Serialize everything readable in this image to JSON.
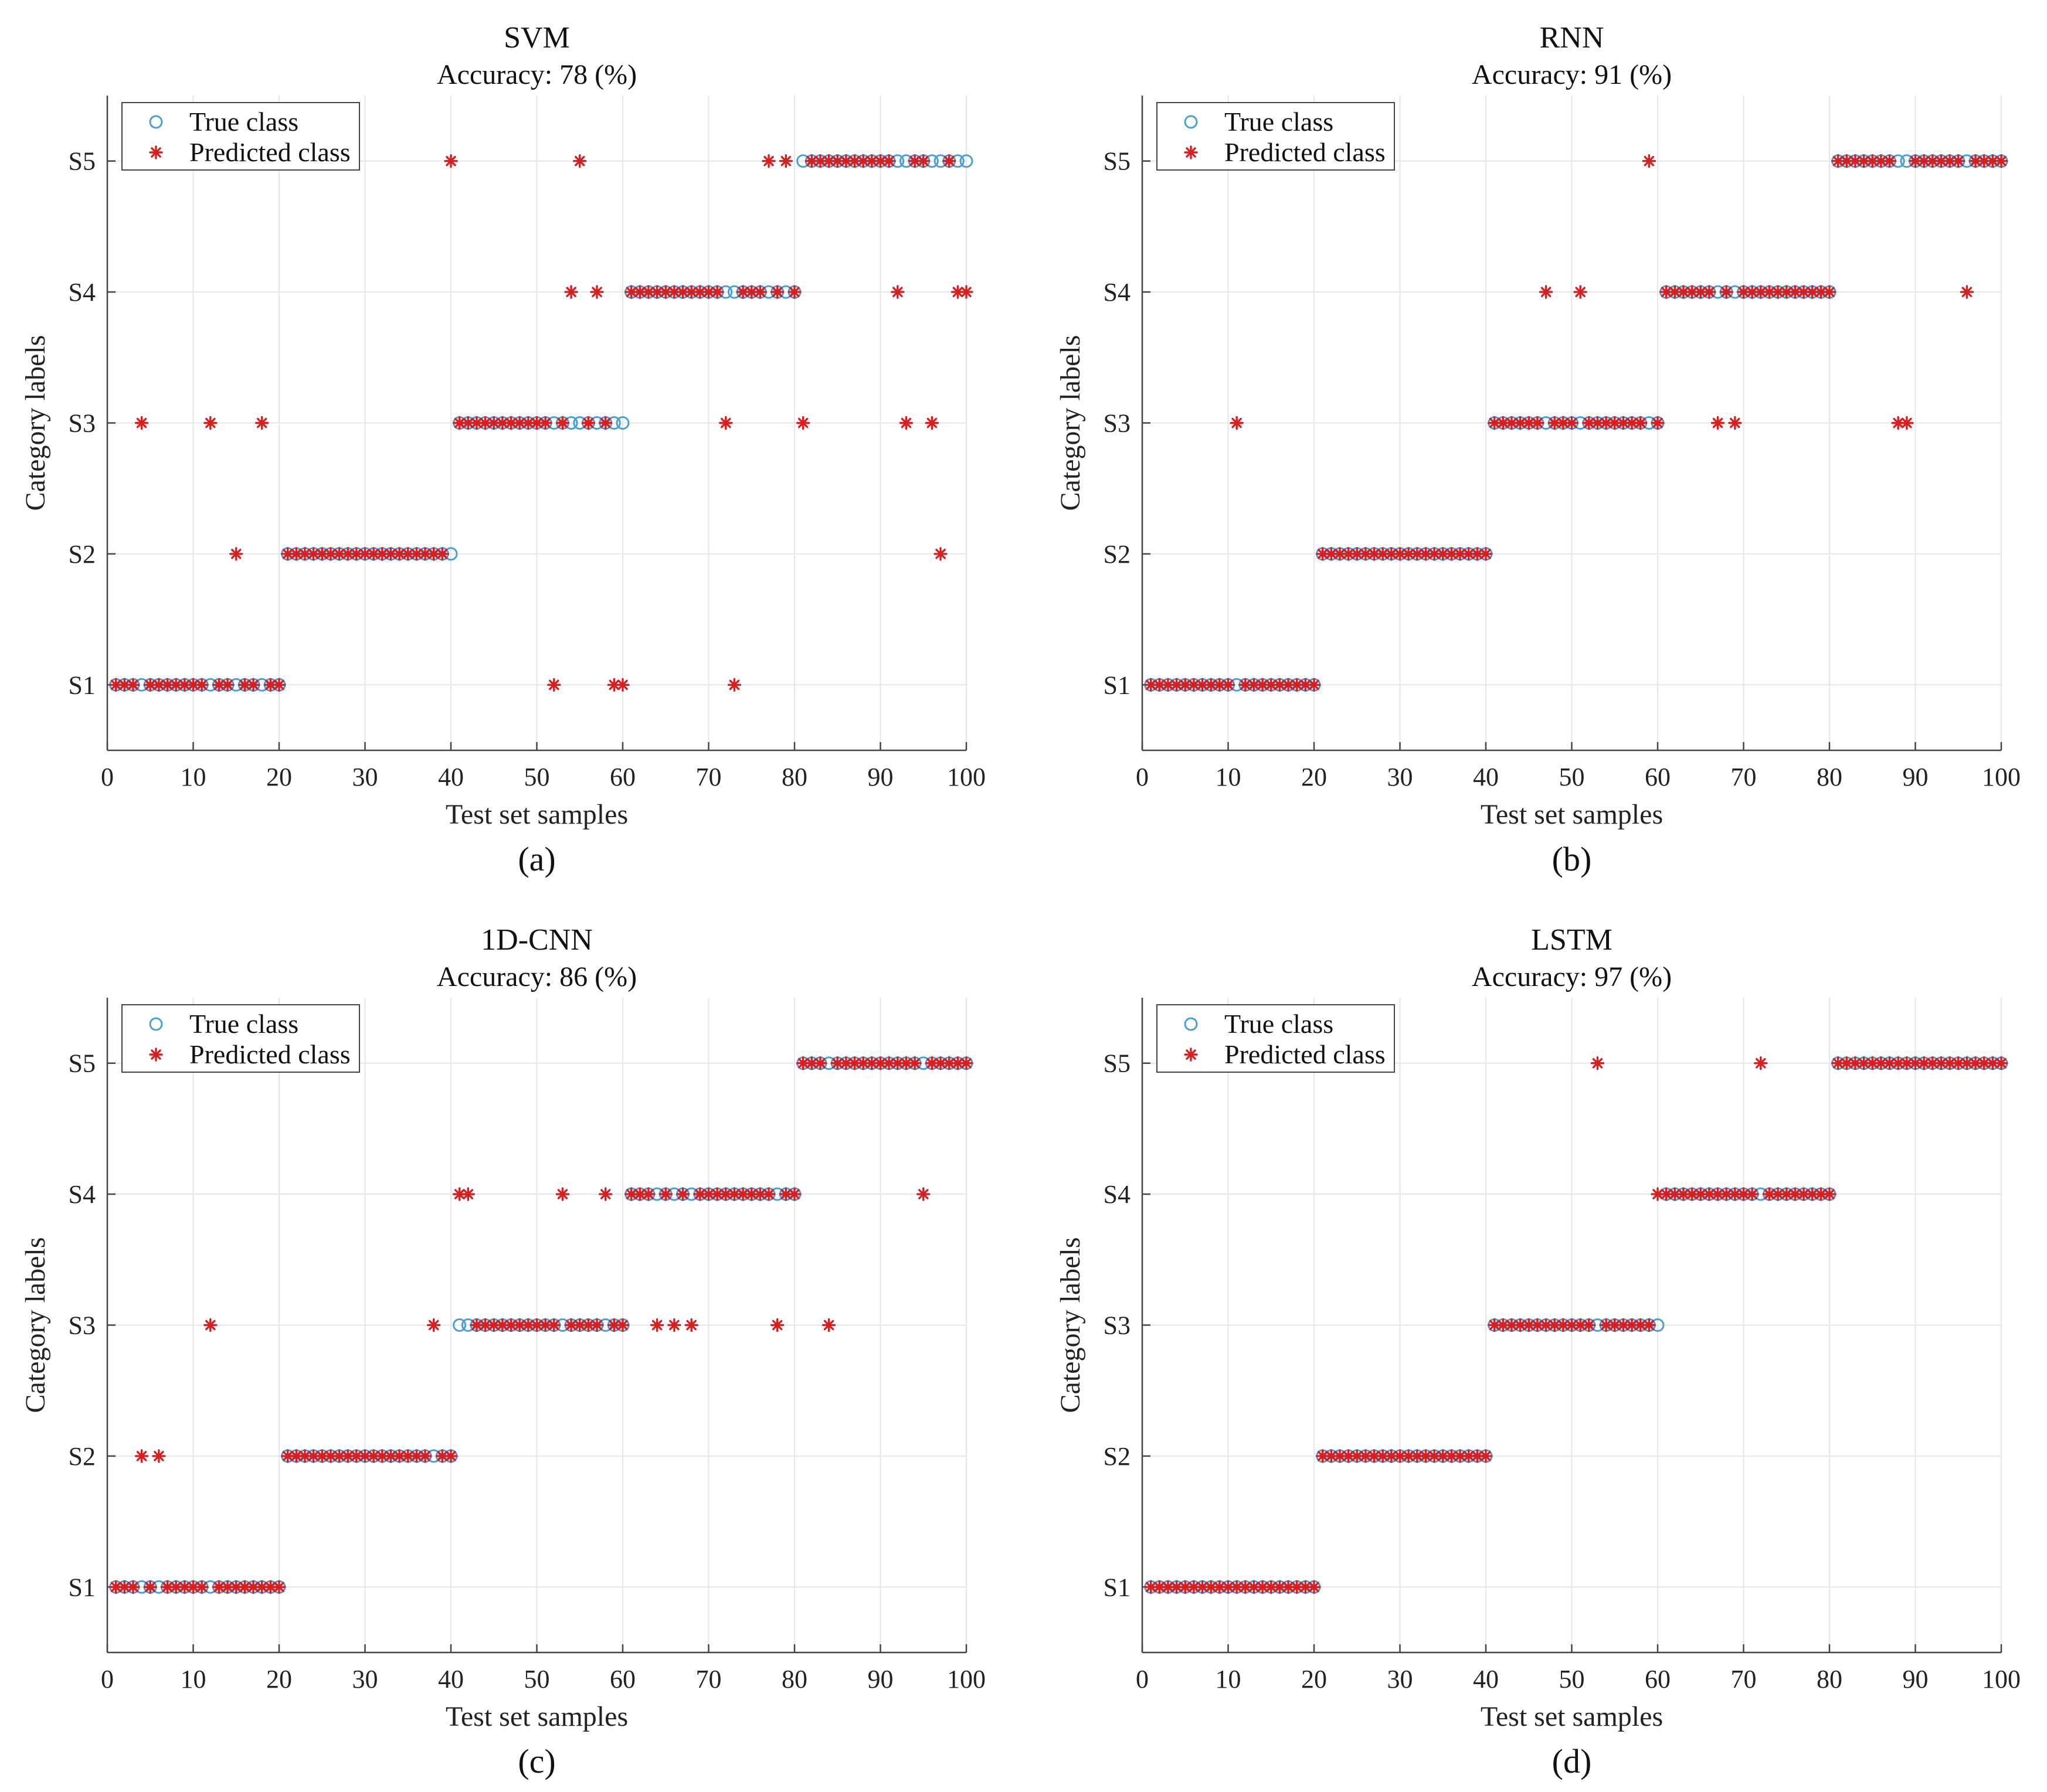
{
  "chart_data": [
    {
      "type": "scatter",
      "panel": "(a)",
      "title": "SVM",
      "subtitle": "Accuracy: 78 (%)",
      "xlabel": "Test set samples",
      "ylabel": "Category labels",
      "xlim": [
        0,
        100
      ],
      "xticks": [
        0,
        10,
        20,
        30,
        40,
        50,
        60,
        70,
        80,
        90,
        100
      ],
      "yticks": [
        1,
        2,
        3,
        4,
        5
      ],
      "ytick_labels": [
        "S1",
        "S2",
        "S3",
        "S4",
        "S5"
      ],
      "ylim": [
        0.5,
        5.5
      ],
      "legend": [
        "True class",
        "Predicted class"
      ],
      "legend_position": "top-left",
      "true_class_segments": [
        [
          1,
          20,
          1
        ],
        [
          21,
          40,
          2
        ],
        [
          41,
          60,
          3
        ],
        [
          61,
          80,
          4
        ],
        [
          81,
          100,
          5
        ]
      ],
      "predicted_deviations": [
        {
          "x": 4,
          "y": 3
        },
        {
          "x": 12,
          "y": 3
        },
        {
          "x": 15,
          "y": 2
        },
        {
          "x": 18,
          "y": 3
        },
        {
          "x": 40,
          "y": 5
        },
        {
          "x": 52,
          "y": 1
        },
        {
          "x": 54,
          "y": 4
        },
        {
          "x": 55,
          "y": 5
        },
        {
          "x": 57,
          "y": 4
        },
        {
          "x": 59,
          "y": 1
        },
        {
          "x": 60,
          "y": 1
        },
        {
          "x": 72,
          "y": 3
        },
        {
          "x": 73,
          "y": 1
        },
        {
          "x": 77,
          "y": 5
        },
        {
          "x": 79,
          "y": 5
        },
        {
          "x": 81,
          "y": 3
        },
        {
          "x": 92,
          "y": 4
        },
        {
          "x": 93,
          "y": 3
        },
        {
          "x": 96,
          "y": 3
        },
        {
          "x": 97,
          "y": 2
        },
        {
          "x": 99,
          "y": 4
        },
        {
          "x": 100,
          "y": 4
        }
      ]
    },
    {
      "type": "scatter",
      "panel": "(b)",
      "title": "RNN",
      "subtitle": "Accuracy: 91 (%)",
      "xlabel": "Test set samples",
      "ylabel": "Category labels",
      "xlim": [
        0,
        100
      ],
      "xticks": [
        0,
        10,
        20,
        30,
        40,
        50,
        60,
        70,
        80,
        90,
        100
      ],
      "yticks": [
        1,
        2,
        3,
        4,
        5
      ],
      "ytick_labels": [
        "S1",
        "S2",
        "S3",
        "S4",
        "S5"
      ],
      "ylim": [
        0.5,
        5.5
      ],
      "legend": [
        "True class",
        "Predicted class"
      ],
      "legend_position": "top-left",
      "true_class_segments": [
        [
          1,
          20,
          1
        ],
        [
          21,
          40,
          2
        ],
        [
          41,
          60,
          3
        ],
        [
          61,
          80,
          4
        ],
        [
          81,
          100,
          5
        ]
      ],
      "predicted_deviations": [
        {
          "x": 11,
          "y": 3
        },
        {
          "x": 47,
          "y": 4
        },
        {
          "x": 51,
          "y": 4
        },
        {
          "x": 59,
          "y": 5
        },
        {
          "x": 67,
          "y": 3
        },
        {
          "x": 69,
          "y": 3
        },
        {
          "x": 88,
          "y": 3
        },
        {
          "x": 89,
          "y": 3
        },
        {
          "x": 96,
          "y": 4
        }
      ]
    },
    {
      "type": "scatter",
      "panel": "(c)",
      "title": "1D-CNN",
      "subtitle": "Accuracy: 86 (%)",
      "xlabel": "Test set samples",
      "ylabel": "Category labels",
      "xlim": [
        0,
        100
      ],
      "xticks": [
        0,
        10,
        20,
        30,
        40,
        50,
        60,
        70,
        80,
        90,
        100
      ],
      "yticks": [
        1,
        2,
        3,
        4,
        5
      ],
      "ytick_labels": [
        "S1",
        "S2",
        "S3",
        "S4",
        "S5"
      ],
      "ylim": [
        0.5,
        5.5
      ],
      "legend": [
        "True class",
        "Predicted class"
      ],
      "legend_position": "top-left",
      "true_class_segments": [
        [
          1,
          20,
          1
        ],
        [
          21,
          40,
          2
        ],
        [
          41,
          60,
          3
        ],
        [
          61,
          80,
          4
        ],
        [
          81,
          100,
          5
        ]
      ],
      "predicted_deviations": [
        {
          "x": 4,
          "y": 2
        },
        {
          "x": 6,
          "y": 2
        },
        {
          "x": 12,
          "y": 3
        },
        {
          "x": 38,
          "y": 3
        },
        {
          "x": 41,
          "y": 4
        },
        {
          "x": 42,
          "y": 4
        },
        {
          "x": 53,
          "y": 4
        },
        {
          "x": 58,
          "y": 4
        },
        {
          "x": 64,
          "y": 3
        },
        {
          "x": 66,
          "y": 3
        },
        {
          "x": 68,
          "y": 3
        },
        {
          "x": 78,
          "y": 3
        },
        {
          "x": 84,
          "y": 3
        },
        {
          "x": 95,
          "y": 4
        }
      ]
    },
    {
      "type": "scatter",
      "panel": "(d)",
      "title": "LSTM",
      "subtitle": "Accuracy: 97 (%)",
      "xlabel": "Test set samples",
      "ylabel": "Category labels",
      "xlim": [
        0,
        100
      ],
      "xticks": [
        0,
        10,
        20,
        30,
        40,
        50,
        60,
        70,
        80,
        90,
        100
      ],
      "yticks": [
        1,
        2,
        3,
        4,
        5
      ],
      "ytick_labels": [
        "S1",
        "S2",
        "S3",
        "S4",
        "S5"
      ],
      "ylim": [
        0.5,
        5.5
      ],
      "legend": [
        "True class",
        "Predicted class"
      ],
      "legend_position": "top-left",
      "true_class_segments": [
        [
          1,
          20,
          1
        ],
        [
          21,
          40,
          2
        ],
        [
          41,
          60,
          3
        ],
        [
          61,
          80,
          4
        ],
        [
          81,
          100,
          5
        ]
      ],
      "predicted_deviations": [
        {
          "x": 53,
          "y": 5
        },
        {
          "x": 60,
          "y": 4
        },
        {
          "x": 72,
          "y": 5
        }
      ]
    }
  ]
}
